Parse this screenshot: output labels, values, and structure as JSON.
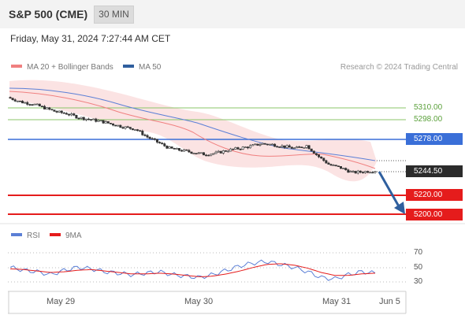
{
  "header": {
    "title": "S&P 500 (CME)",
    "timeframe": "30 MIN"
  },
  "timestamp": "Friday, May 31, 2024 7:27:44 AM CET",
  "legend": {
    "ma20": {
      "label": "MA 20 + Bollinger Bands",
      "color": "#f08080"
    },
    "ma50": {
      "label": "MA 50",
      "color": "#2f5f9e"
    }
  },
  "credit": "Research © 2024 Trading Central",
  "price_levels": [
    {
      "value": "5310.00",
      "kind": "resistance",
      "color": "#7dc05a"
    },
    {
      "value": "5298.00",
      "kind": "resistance",
      "color": "#7dc05a"
    },
    {
      "value": "5278.00",
      "kind": "pivot",
      "color": "#3a6fd8"
    },
    {
      "value": "5244.50",
      "kind": "last",
      "color": "#2b2b2b"
    },
    {
      "value": "5220.00",
      "kind": "support",
      "color": "#e51c1c"
    },
    {
      "value": "5200.00",
      "kind": "support",
      "color": "#e51c1c"
    }
  ],
  "rsi_legend": {
    "rsi": {
      "label": "RSI",
      "color": "#5b7fd6"
    },
    "ma9": {
      "label": "9MA",
      "color": "#e51c1c"
    }
  },
  "rsi_levels": [
    "70",
    "50",
    "30"
  ],
  "x_labels": [
    "May 29",
    "May 30",
    "May 31",
    "Jun 5"
  ],
  "chart_data": {
    "type": "candlestick",
    "title": "S&P 500 (CME)",
    "timeframe": "30 MIN",
    "approx_close_path": [
      5320,
      5316,
      5314,
      5310,
      5306,
      5304,
      5300,
      5298,
      5296,
      5293,
      5290,
      5288,
      5280,
      5274,
      5268,
      5266,
      5264,
      5262,
      5263,
      5266,
      5268,
      5270,
      5273,
      5272,
      5270,
      5268,
      5271,
      5260,
      5251,
      5248,
      5243,
      5244,
      5245
    ],
    "rsi_approx": [
      50,
      46,
      44,
      40,
      46,
      50,
      48,
      44,
      42,
      40,
      42,
      44,
      40,
      38,
      36,
      40,
      46,
      52,
      56,
      58,
      54,
      50,
      44,
      36,
      34,
      40,
      44,
      42
    ],
    "rsi_ma9_approx": [
      48,
      47,
      45,
      43,
      44,
      46,
      47,
      45,
      43,
      41,
      41,
      42,
      41,
      39,
      37,
      38,
      41,
      45,
      50,
      54,
      55,
      53,
      49,
      43,
      39,
      39,
      41,
      42
    ],
    "arrow": "down toward 5200.00"
  }
}
